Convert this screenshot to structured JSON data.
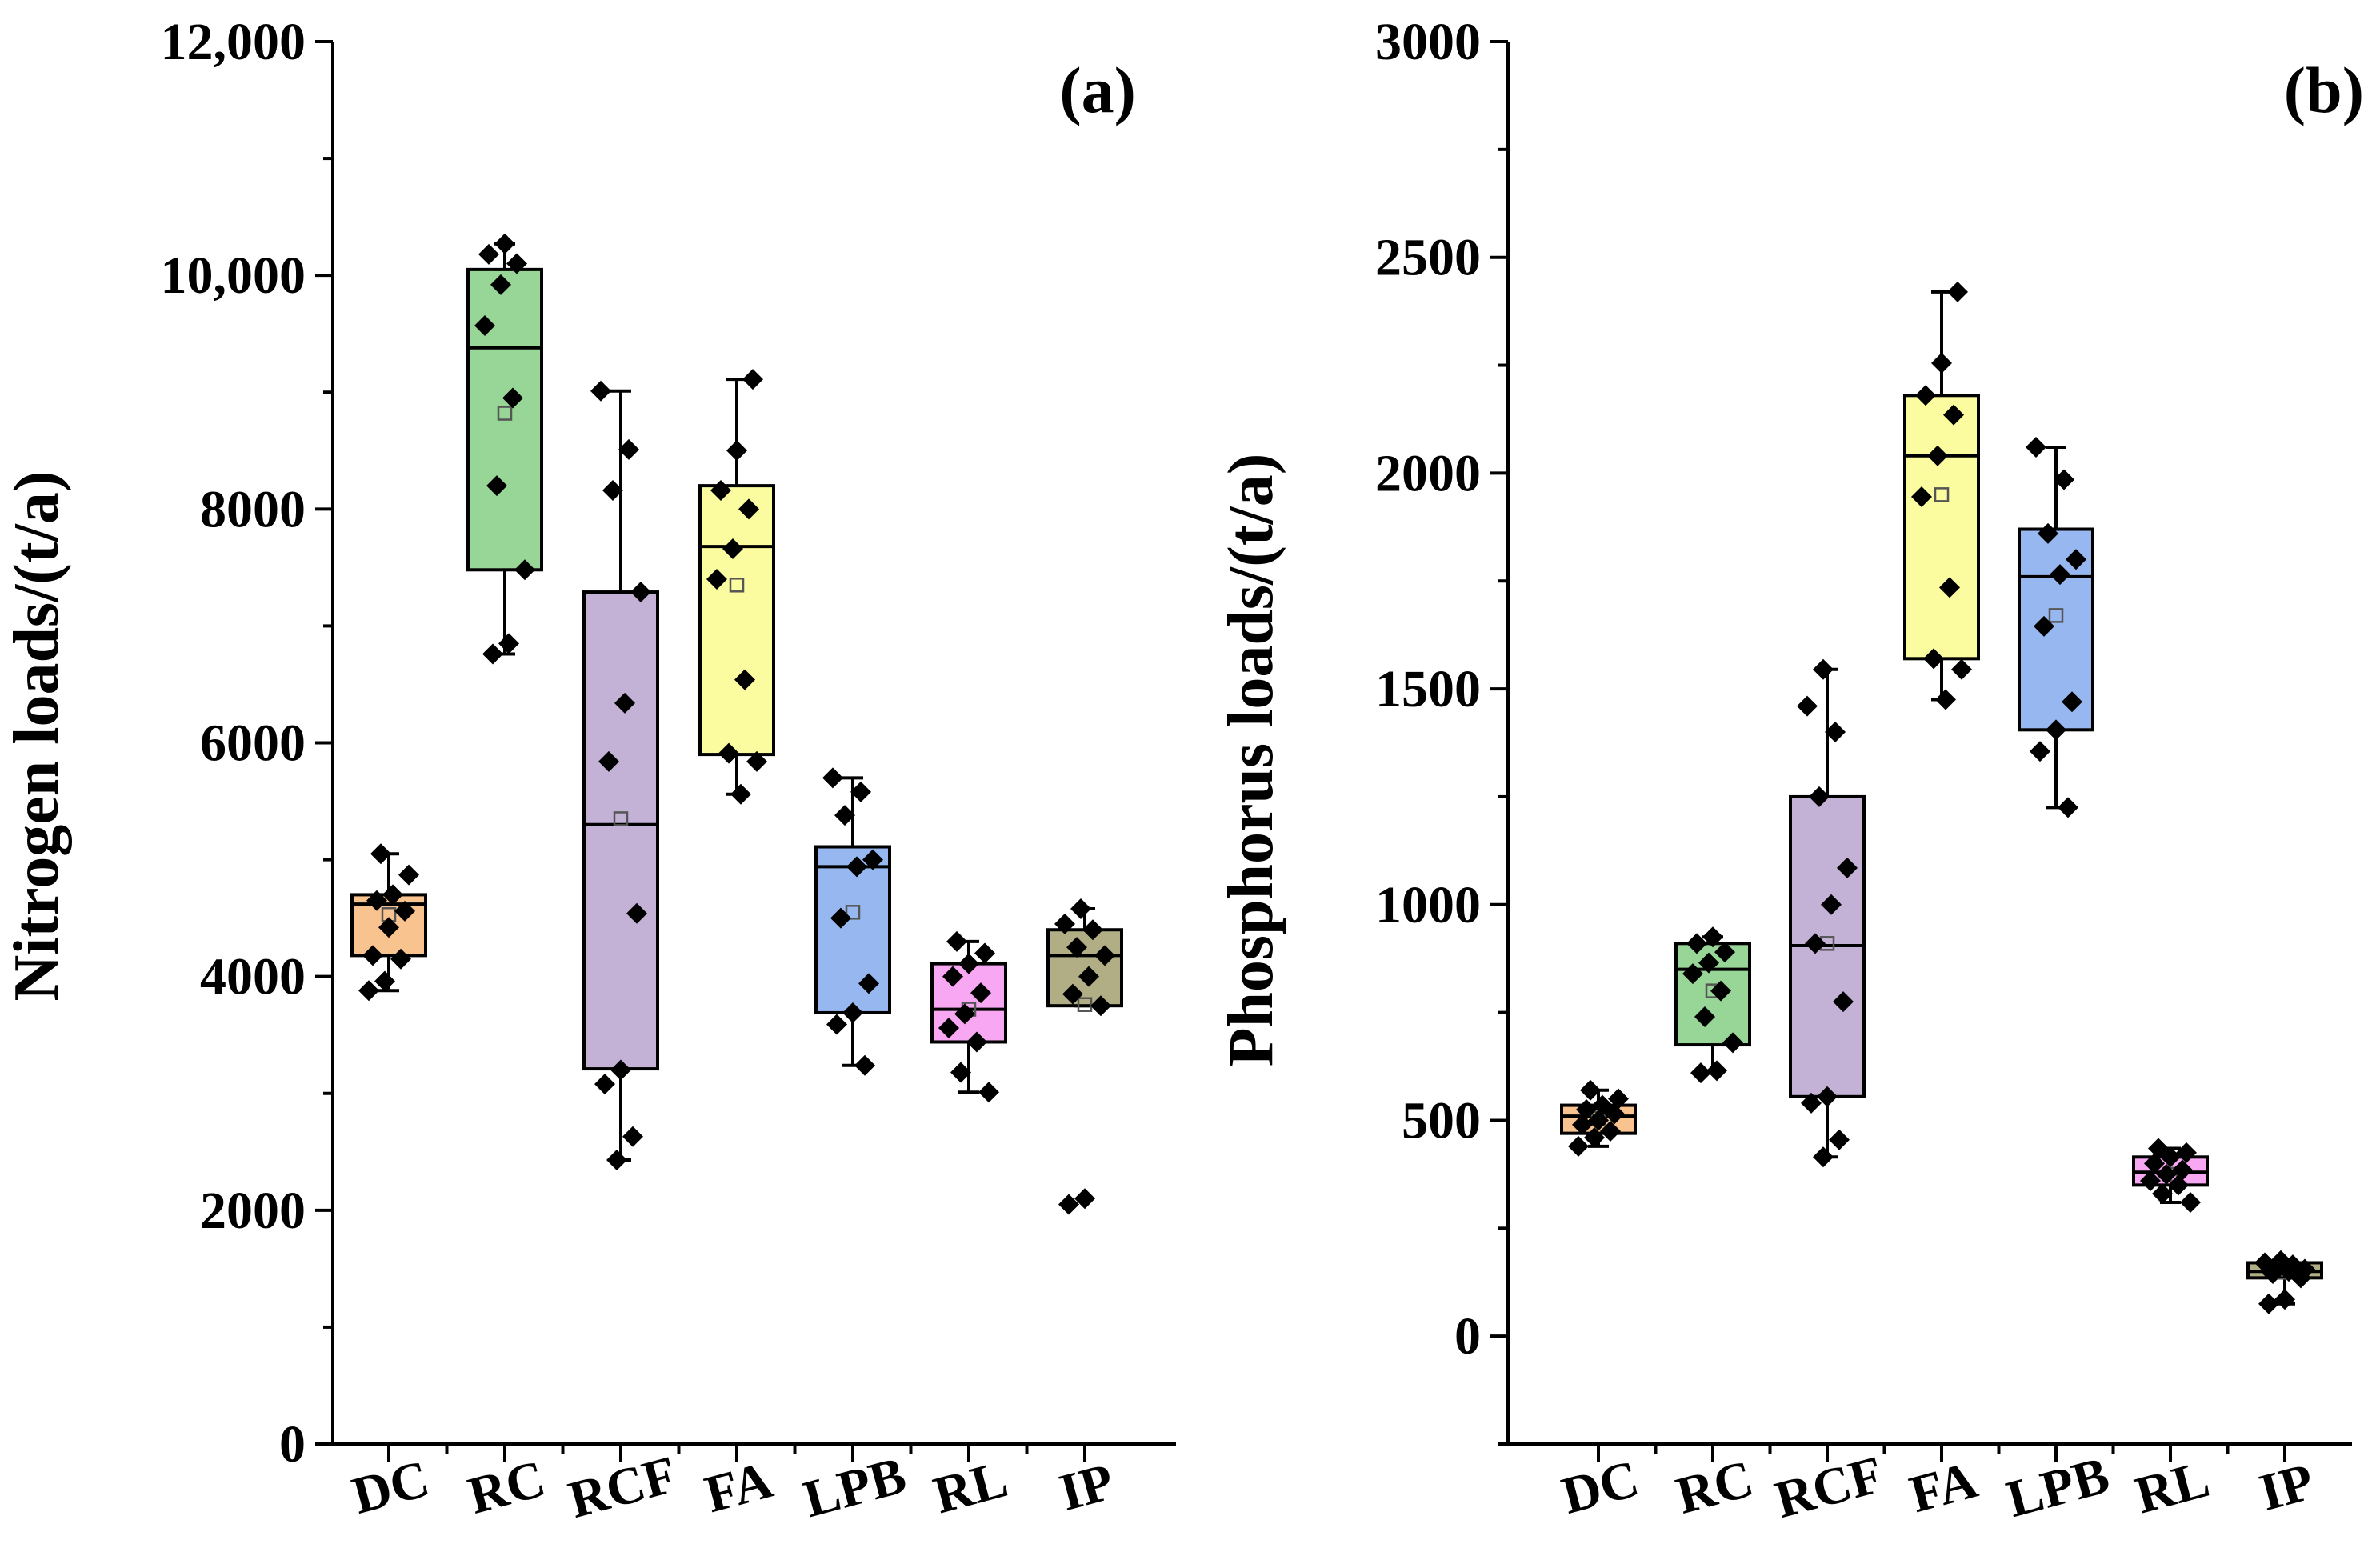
{
  "chart_data": [
    {
      "type": "box",
      "panel_label": "(a)",
      "ylabel": "Nitrogen  loads/(t/a)",
      "xlabel": "",
      "ylim": [
        0,
        12000
      ],
      "yticks": [
        0,
        2000,
        4000,
        6000,
        8000,
        10000,
        12000
      ],
      "ytick_labels": [
        "0",
        "2000",
        "4000",
        "6000",
        "8000",
        "10,000",
        "12,000"
      ],
      "categories": [
        "DC",
        "RC",
        "RCF",
        "FA",
        "LPB",
        "RL",
        "IP"
      ],
      "colors": [
        "#f9c38f",
        "#98d697",
        "#c3b1d6",
        "#fbfb9f",
        "#96b7ef",
        "#f8a8f2",
        "#b1ae86"
      ],
      "boxes": [
        {
          "category": "DC",
          "q1": 4180,
          "median": 4620,
          "q3": 4700,
          "mean": 4530,
          "whisker_low": 3880,
          "whisker_high": 5050,
          "points": [
            3880,
            3960,
            4150,
            4180,
            4420,
            4560,
            4650,
            4700,
            4870,
            5050
          ]
        },
        {
          "category": "RC",
          "q1": 7480,
          "median": 9380,
          "q3": 10050,
          "mean": 8820,
          "whisker_low": 6760,
          "whisker_high": 10270,
          "points": [
            6760,
            6850,
            7480,
            8200,
            8950,
            9570,
            9920,
            10100,
            10180,
            10270
          ]
        },
        {
          "category": "RCF",
          "q1": 3210,
          "median": 5300,
          "q3": 7290,
          "mean": 5350,
          "whisker_low": 2430,
          "whisker_high": 9010,
          "points": [
            2430,
            2630,
            3080,
            3200,
            4540,
            5840,
            6340,
            7290,
            8160,
            8510,
            9010
          ]
        },
        {
          "category": "FA",
          "q1": 5900,
          "median": 7680,
          "q3": 8200,
          "mean": 7350,
          "whisker_low": 5560,
          "whisker_high": 9110,
          "points": [
            5560,
            5840,
            5910,
            6540,
            7400,
            7660,
            8000,
            8160,
            8500,
            9110
          ]
        },
        {
          "category": "LPB",
          "q1": 3690,
          "median": 4940,
          "q3": 5110,
          "mean": 4550,
          "whisker_low": 3240,
          "whisker_high": 5700,
          "points": [
            3240,
            3590,
            3690,
            3940,
            4500,
            4940,
            5000,
            5380,
            5580,
            5700
          ]
        },
        {
          "category": "RL",
          "q1": 3440,
          "median": 3720,
          "q3": 4110,
          "mean": 3720,
          "whisker_low": 3010,
          "whisker_high": 4300,
          "points": [
            3010,
            3180,
            3440,
            3560,
            3680,
            3860,
            4000,
            4110,
            4200,
            4300
          ]
        },
        {
          "category": "IP",
          "q1": 3750,
          "median": 4180,
          "q3": 4400,
          "mean": 3760,
          "whisker_low": 3750,
          "whisker_high": 4580,
          "points": [
            2050,
            2100,
            3750,
            3850,
            4000,
            4180,
            4250,
            4400,
            4450,
            4580
          ]
        }
      ]
    },
    {
      "type": "box",
      "panel_label": "(b)",
      "ylabel": "Phosphorus loads/(t/a)",
      "xlabel": "",
      "ylim": [
        -250,
        3000
      ],
      "yticks": [
        0,
        500,
        1000,
        1500,
        2000,
        2500,
        3000
      ],
      "ytick_labels": [
        "0",
        "500",
        "1000",
        "1500",
        "2000",
        "2500",
        "3000"
      ],
      "categories": [
        "DC",
        "RC",
        "RCF",
        "FA",
        "LPB",
        "RL",
        "IP"
      ],
      "colors": [
        "#f9c38f",
        "#98d697",
        "#c3b1d6",
        "#fbfb9f",
        "#96b7ef",
        "#f8a8f2",
        "#b1ae86"
      ],
      "boxes": [
        {
          "category": "DC",
          "q1": 470,
          "median": 510,
          "q3": 535,
          "mean": 505,
          "whisker_low": 440,
          "whisker_high": 570,
          "points": [
            440,
            460,
            475,
            490,
            500,
            515,
            525,
            535,
            550,
            570
          ]
        },
        {
          "category": "RC",
          "q1": 675,
          "median": 850,
          "q3": 910,
          "mean": 800,
          "whisker_low": 610,
          "whisker_high": 925,
          "points": [
            610,
            615,
            680,
            740,
            800,
            840,
            865,
            890,
            910,
            925
          ]
        },
        {
          "category": "RCF",
          "q1": 555,
          "median": 905,
          "q3": 1250,
          "mean": 910,
          "whisker_low": 415,
          "whisker_high": 1545,
          "points": [
            415,
            455,
            540,
            555,
            775,
            910,
            1000,
            1085,
            1250,
            1400,
            1460,
            1545
          ]
        },
        {
          "category": "FA",
          "q1": 1570,
          "median": 2040,
          "q3": 2180,
          "mean": 1950,
          "whisker_low": 1475,
          "whisker_high": 2420,
          "points": [
            1475,
            1545,
            1570,
            1735,
            1945,
            2040,
            2135,
            2180,
            2255,
            2420
          ]
        },
        {
          "category": "LPB",
          "q1": 1405,
          "median": 1760,
          "q3": 1870,
          "mean": 1670,
          "whisker_low": 1225,
          "whisker_high": 2060,
          "points": [
            1225,
            1355,
            1405,
            1470,
            1645,
            1765,
            1800,
            1860,
            1985,
            2060
          ]
        },
        {
          "category": "RL",
          "q1": 350,
          "median": 380,
          "q3": 415,
          "mean": 375,
          "whisker_low": 310,
          "whisker_high": 435,
          "points": [
            310,
            330,
            350,
            360,
            375,
            385,
            400,
            415,
            425,
            435
          ]
        },
        {
          "category": "IP",
          "q1": 135,
          "median": 150,
          "q3": 170,
          "mean": 148,
          "whisker_low": 75,
          "whisker_high": 175,
          "points": [
            75,
            85,
            135,
            145,
            150,
            155,
            160,
            165,
            170,
            175
          ]
        }
      ]
    }
  ]
}
